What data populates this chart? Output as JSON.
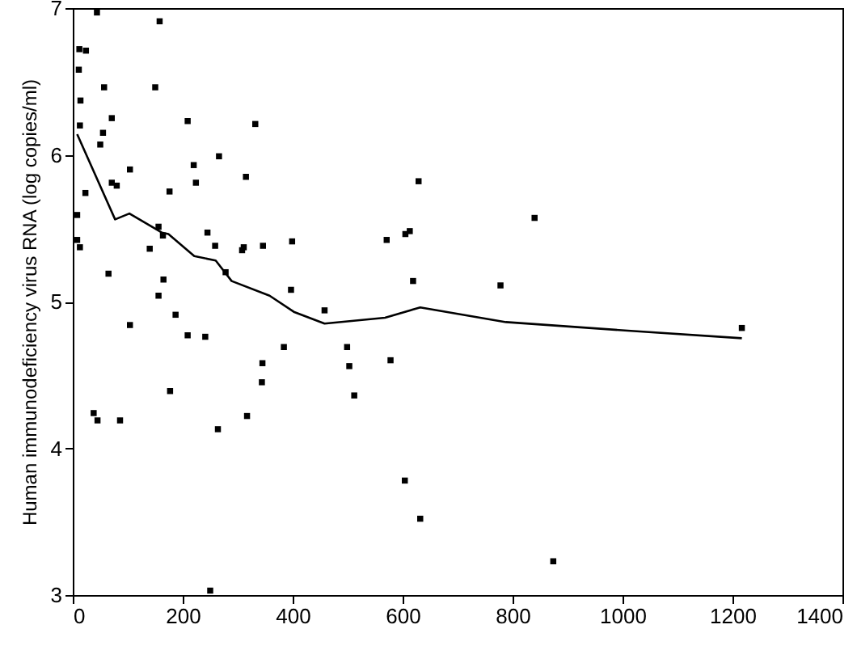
{
  "chart_data": {
    "type": "scatter",
    "ylabel": "Human immunodeficiency virus RNA (log copies/ml)",
    "xlim": [
      0,
      1400
    ],
    "xticks": [
      0,
      200,
      400,
      600,
      800,
      1000,
      1200,
      1400
    ],
    "ylim": [
      3,
      7
    ],
    "yticks": [
      3,
      4,
      5,
      6,
      7
    ],
    "series": [
      {
        "color": "#000000",
        "marker": "square",
        "x": [
          44,
          158,
          12,
          24,
          11,
          57,
          150,
          14,
          71,
          209,
          332,
          13,
          55,
          50,
          220,
          266,
          104,
          315,
          71,
          80,
          224,
          176,
          23,
          8,
          156,
          8,
          13,
          164,
          245,
          140,
          259,
          308,
          311,
          346,
          399,
          65,
          278,
          165,
          397,
          156,
          187,
          104,
          209,
          241,
          384,
          345,
          344,
          177,
          38,
          45,
          86,
          317,
          264,
          250,
          629,
          840,
          571,
          605,
          613,
          619,
          778,
          458,
          499,
          503,
          578,
          512,
          604,
          632,
          874,
          1217
        ],
        "values": [
          6.97,
          6.91,
          6.72,
          6.71,
          6.58,
          6.46,
          6.46,
          6.37,
          6.25,
          6.23,
          6.21,
          6.2,
          6.15,
          6.07,
          5.93,
          5.99,
          5.9,
          5.85,
          5.81,
          5.79,
          5.81,
          5.75,
          5.74,
          5.59,
          5.51,
          5.42,
          5.37,
          5.45,
          5.47,
          5.36,
          5.38,
          5.35,
          5.37,
          5.38,
          5.41,
          5.19,
          5.2,
          5.15,
          5.08,
          5.04,
          4.91,
          4.84,
          4.77,
          4.76,
          4.69,
          4.58,
          4.45,
          4.39,
          4.24,
          4.19,
          4.19,
          4.22,
          4.13,
          3.03,
          5.82,
          5.57,
          5.42,
          5.46,
          5.48,
          5.14,
          5.11,
          4.94,
          4.69,
          4.56,
          4.6,
          4.36,
          3.78,
          3.52,
          3.23,
          4.82
        ]
      },
      {
        "type": "line",
        "color": "#000000",
        "x": [
          8,
          77,
          103,
          162,
          174,
          221,
          260,
          289,
          358,
          402,
          458,
          568,
          632,
          788,
          1015,
          1217
        ],
        "values": [
          6.14,
          5.56,
          5.6,
          5.47,
          5.46,
          5.31,
          5.28,
          5.14,
          5.04,
          4.93,
          4.85,
          4.89,
          4.96,
          4.86,
          4.8,
          4.75
        ]
      }
    ]
  }
}
